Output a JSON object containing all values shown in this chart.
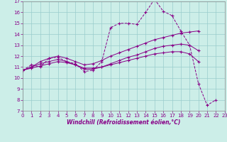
{
  "xlabel": "Windchill (Refroidissement éolien,°C)",
  "bg_color": "#cceee8",
  "line_color": "#880088",
  "grid_color": "#99cccc",
  "xlim": [
    0,
    23
  ],
  "ylim": [
    7,
    17
  ],
  "xticks": [
    0,
    1,
    2,
    3,
    4,
    5,
    6,
    7,
    8,
    9,
    10,
    11,
    12,
    13,
    14,
    15,
    16,
    17,
    18,
    19,
    20,
    21,
    22,
    23
  ],
  "yticks": [
    7,
    8,
    9,
    10,
    11,
    12,
    13,
    14,
    15,
    16,
    17
  ],
  "series1_x": [
    0,
    1,
    2,
    3,
    4,
    5,
    6,
    7,
    8,
    9,
    10,
    11,
    12,
    13,
    14,
    15,
    16,
    17,
    18,
    19,
    20,
    21,
    22
  ],
  "series1_y": [
    10.7,
    11.2,
    11.0,
    11.8,
    11.9,
    11.5,
    11.3,
    10.6,
    10.7,
    11.5,
    14.6,
    15.0,
    15.0,
    14.9,
    16.0,
    17.2,
    16.1,
    15.7,
    14.3,
    13.0,
    9.5,
    7.5,
    8.0
  ],
  "series2_x": [
    0,
    1,
    2,
    3,
    4,
    5,
    6,
    7,
    8,
    9,
    10,
    11,
    12,
    13,
    14,
    15,
    16,
    17,
    18,
    19,
    20
  ],
  "series2_y": [
    10.7,
    11.0,
    11.5,
    11.8,
    12.0,
    11.8,
    11.5,
    11.2,
    11.3,
    11.6,
    12.0,
    12.3,
    12.6,
    12.9,
    13.2,
    13.5,
    13.7,
    13.9,
    14.1,
    14.2,
    14.3
  ],
  "series3_x": [
    0,
    1,
    2,
    3,
    4,
    5,
    6,
    7,
    8,
    9,
    10,
    11,
    12,
    13,
    14,
    15,
    16,
    17,
    18,
    19,
    20
  ],
  "series3_y": [
    10.7,
    11.0,
    11.3,
    11.5,
    11.7,
    11.5,
    11.2,
    10.8,
    10.8,
    11.0,
    11.3,
    11.6,
    11.9,
    12.1,
    12.4,
    12.7,
    12.9,
    13.0,
    13.1,
    13.0,
    12.5
  ],
  "series4_x": [
    0,
    1,
    2,
    3,
    4,
    5,
    6,
    7,
    8,
    9,
    10,
    11,
    12,
    13,
    14,
    15,
    16,
    17,
    18,
    19,
    20
  ],
  "series4_y": [
    10.7,
    10.9,
    11.1,
    11.3,
    11.5,
    11.4,
    11.2,
    10.9,
    10.9,
    11.0,
    11.2,
    11.4,
    11.6,
    11.8,
    12.0,
    12.2,
    12.3,
    12.4,
    12.4,
    12.2,
    11.5
  ]
}
